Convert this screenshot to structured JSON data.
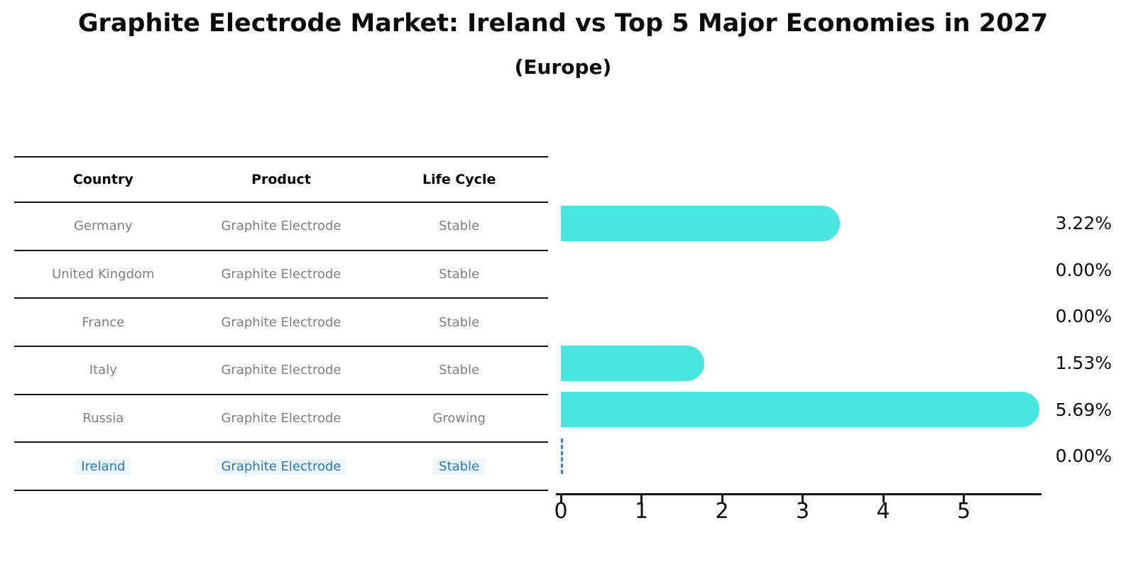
{
  "title": "Graphite Electrode Market: Ireland vs Top 5 Major Economies in 2027",
  "subtitle": "(Europe)",
  "table": {
    "headers": [
      "Country",
      "Product",
      "Life Cycle"
    ],
    "rows": [
      {
        "country": "Germany",
        "product": "Graphite Electrode",
        "life_cycle": "Stable",
        "highlight": false
      },
      {
        "country": "United Kingdom",
        "product": "Graphite Electrode",
        "life_cycle": "Stable",
        "highlight": false
      },
      {
        "country": "France",
        "product": "Graphite Electrode",
        "life_cycle": "Stable",
        "highlight": false
      },
      {
        "country": "Italy",
        "product": "Graphite Electrode",
        "life_cycle": "Stable",
        "highlight": false
      },
      {
        "country": "Russia",
        "product": "Graphite Electrode",
        "life_cycle": "Growing",
        "highlight": false
      },
      {
        "country": "Ireland",
        "product": "Graphite Electrode",
        "life_cycle": "Stable",
        "highlight": true
      }
    ]
  },
  "chart_data": {
    "type": "bar",
    "orientation": "horizontal",
    "title": "Graphite Electrode Market: Ireland vs Top 5 Major Economies in 2027 (Europe)",
    "categories": [
      "Germany",
      "United Kingdom",
      "France",
      "Italy",
      "Russia",
      "Ireland"
    ],
    "values": [
      3.22,
      0.0,
      0.0,
      1.53,
      5.69,
      0.0
    ],
    "value_labels": [
      "3.22%",
      "0.00%",
      "0.00%",
      "1.53%",
      "5.69%",
      "0.00%"
    ],
    "xlabel": "",
    "ylabel": "",
    "xlim": [
      0,
      5.96
    ],
    "x_ticks": [
      0,
      1,
      2,
      3,
      4,
      5
    ],
    "grid": false,
    "legend": false,
    "highlight_category": "Ireland",
    "zero_marker_style": "dashed-vertical-line"
  },
  "colors": {
    "bar": "#48E5E1",
    "highlight_text": "#2878BE",
    "zero_marker": "#4A7FB5",
    "muted_text": "#7F7F7F",
    "line": "#141414"
  }
}
